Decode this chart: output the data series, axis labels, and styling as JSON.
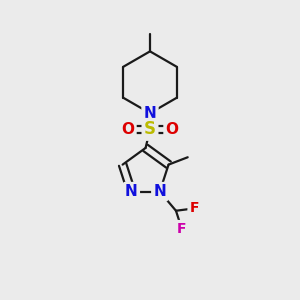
{
  "bg_color": "#ebebeb",
  "bond_color": "#1a1a1a",
  "bond_width": 1.6,
  "atom_colors": {
    "N": "#1010dd",
    "S": "#bbbb00",
    "O": "#dd0000",
    "F1": "#dd0000",
    "F2": "#cc00aa",
    "C": "#1a1a1a"
  },
  "font_size_atom": 11,
  "font_size_methyl": 10
}
